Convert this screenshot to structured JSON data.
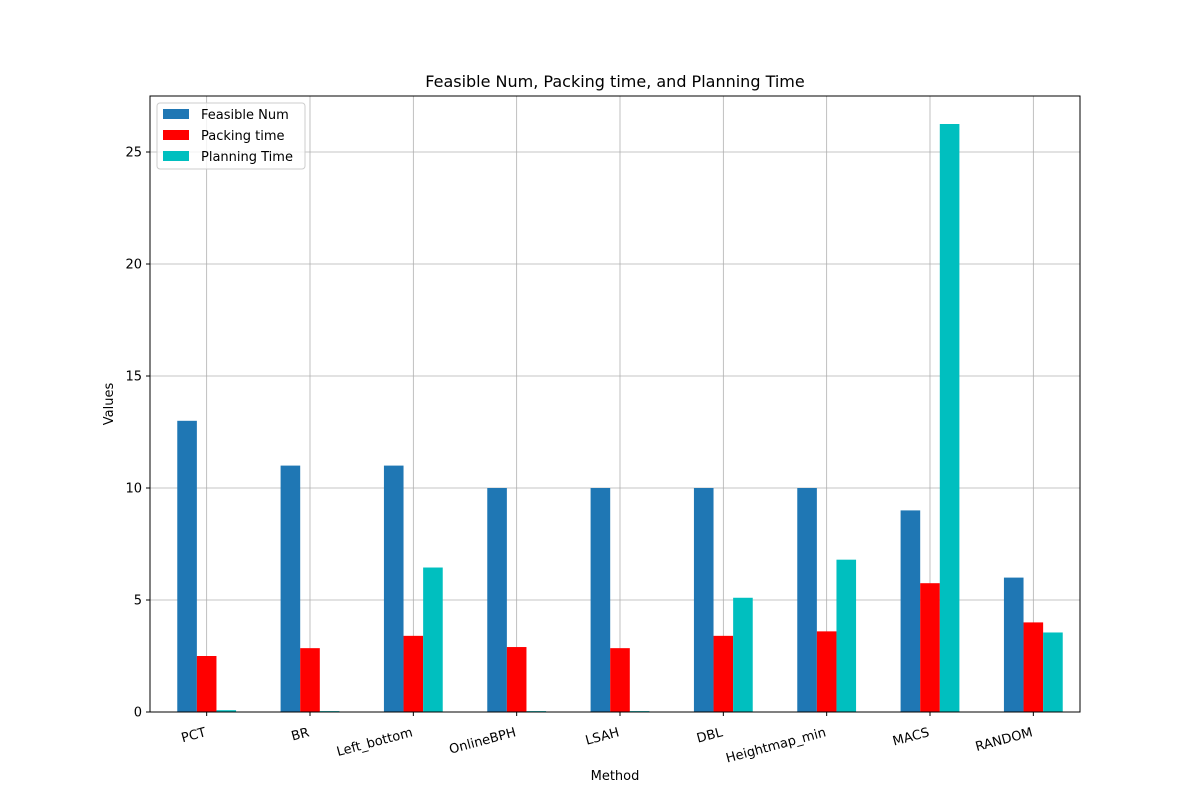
{
  "chart_data": {
    "type": "bar",
    "title": "Feasible Num, Packing time, and Planning Time",
    "xlabel": "Method",
    "ylabel": "Values",
    "categories": [
      "PCT",
      "BR",
      "Left_bottom",
      "OnlineBPH",
      "LSAH",
      "DBL",
      "Heightmap_min",
      "MACS",
      "RANDOM"
    ],
    "series": [
      {
        "name": "Feasible Num",
        "color": "#1f77b4",
        "values": [
          13,
          11,
          11,
          10,
          10,
          10,
          10,
          9,
          6
        ]
      },
      {
        "name": "Packing time",
        "color": "#ff0000",
        "values": [
          2.5,
          2.85,
          3.4,
          2.9,
          2.85,
          3.4,
          3.6,
          5.75,
          4.0
        ]
      },
      {
        "name": "Planning Time",
        "color": "#00bfbf",
        "values": [
          0.08,
          0.04,
          6.45,
          0.04,
          0.04,
          5.1,
          6.8,
          26.25,
          3.55
        ]
      }
    ],
    "ylim": [
      0,
      27.5
    ],
    "yticks": [
      0,
      5,
      10,
      15,
      20,
      25
    ],
    "grid": true,
    "legend_position": "top-left",
    "xtick_rotation": -15
  }
}
